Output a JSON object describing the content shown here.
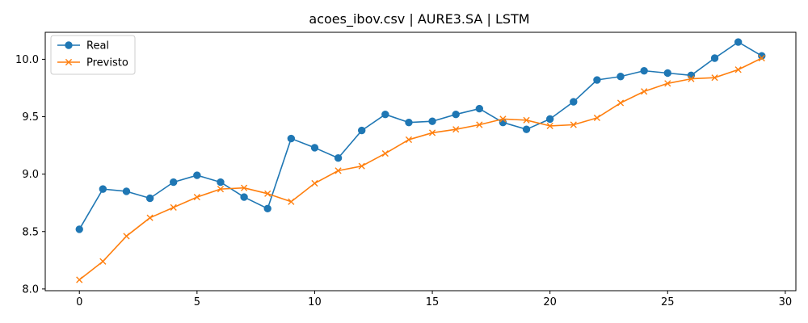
{
  "chart_data": {
    "type": "line",
    "title": "acoes_ibov.csv | AURE3.SA | LSTM",
    "xlabel": "",
    "ylabel": "",
    "xlim": [
      -1.45,
      30.45
    ],
    "ylim": [
      7.985,
      10.235
    ],
    "xticks": [
      0,
      5,
      10,
      15,
      20,
      25,
      30
    ],
    "yticks": [
      8.0,
      8.5,
      9.0,
      9.5,
      10.0
    ],
    "xtick_labels": [
      "0",
      "5",
      "10",
      "15",
      "20",
      "25",
      "30"
    ],
    "ytick_labels": [
      "8.0",
      "8.5",
      "9.0",
      "9.5",
      "10.0"
    ],
    "grid": false,
    "legend_position": "upper-left",
    "x": [
      0,
      1,
      2,
      3,
      4,
      5,
      6,
      7,
      8,
      9,
      10,
      11,
      12,
      13,
      14,
      15,
      16,
      17,
      18,
      19,
      20,
      21,
      22,
      23,
      24,
      25,
      26,
      27,
      28,
      29
    ],
    "series": [
      {
        "name": "Real",
        "color": "#1f77b4",
        "marker": "circle",
        "values": [
          8.52,
          8.87,
          8.85,
          8.79,
          8.93,
          8.99,
          8.93,
          8.8,
          8.7,
          9.31,
          9.23,
          9.14,
          9.38,
          9.52,
          9.45,
          9.46,
          9.52,
          9.57,
          9.45,
          9.39,
          9.48,
          9.63,
          9.82,
          9.85,
          9.9,
          9.88,
          9.86,
          10.01,
          10.15,
          10.03
        ]
      },
      {
        "name": "Previsto",
        "color": "#ff7f0e",
        "marker": "x",
        "values": [
          8.08,
          8.24,
          8.46,
          8.62,
          8.71,
          8.8,
          8.87,
          8.88,
          8.83,
          8.76,
          8.92,
          9.03,
          9.07,
          9.18,
          9.3,
          9.36,
          9.39,
          9.43,
          9.48,
          9.47,
          9.42,
          9.43,
          9.49,
          9.62,
          9.72,
          9.79,
          9.83,
          9.84,
          9.91,
          10.01
        ]
      }
    ]
  }
}
